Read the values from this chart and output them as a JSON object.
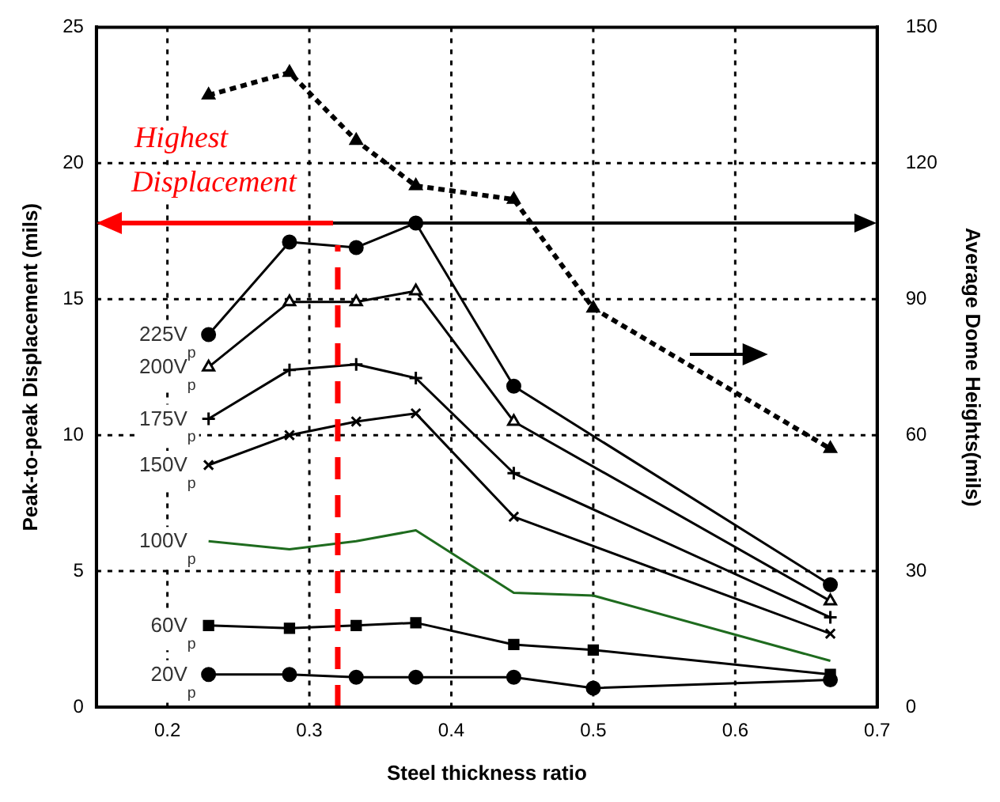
{
  "chart_data": {
    "type": "line",
    "xlabel": "Steel thickness ratio",
    "ylabel": "Peak-to-peak Displacement (mils)",
    "y2label": "Average Dome Heights(mils)",
    "x": [
      0.229,
      0.286,
      0.333,
      0.375,
      0.444,
      0.5,
      0.667
    ],
    "xlim": [
      0.15,
      0.7
    ],
    "xticks": [
      {
        "value": 0.15,
        "label": null
      },
      0.2,
      0.3,
      0.4,
      0.5,
      0.6,
      0.7
    ],
    "ylim": [
      0,
      25
    ],
    "yticks": [
      0,
      5,
      10,
      15,
      20,
      25
    ],
    "y2lim": [
      0,
      150
    ],
    "y2ticks": [
      0,
      30,
      60,
      90,
      120,
      150
    ],
    "grid": true,
    "legend": false,
    "series": [
      {
        "name": "225V$_{p}$",
        "color": "#000000",
        "marker": "circle",
        "values": [
          13.7,
          17.1,
          16.9,
          17.8,
          11.8,
          null,
          4.5
        ]
      },
      {
        "name": "200V$_{p}$",
        "color": "#000000",
        "marker": "triangle",
        "values": [
          12.5,
          14.9,
          14.9,
          15.3,
          10.5,
          null,
          3.9
        ]
      },
      {
        "name": "175V$_{p}$",
        "color": "#000000",
        "marker": "plus",
        "values": [
          10.6,
          12.4,
          12.6,
          12.1,
          8.6,
          null,
          3.3
        ]
      },
      {
        "name": "150V$_{p}$",
        "color": "#000000",
        "marker": "cross",
        "values": [
          8.9,
          10.0,
          10.5,
          10.8,
          7.0,
          null,
          2.7
        ]
      },
      {
        "name": "100V$_{p}$",
        "color": "#1e6b1e",
        "marker": "none",
        "values": [
          6.1,
          5.8,
          6.1,
          6.5,
          4.2,
          4.1,
          1.7
        ]
      },
      {
        "name": "60V$_{p}$",
        "color": "#000000",
        "marker": "square",
        "values": [
          3.0,
          2.9,
          3.0,
          3.1,
          2.3,
          2.1,
          1.2
        ]
      },
      {
        "name": "20V$_{p}$",
        "color": "#000000",
        "marker": "circle",
        "values": [
          1.2,
          1.2,
          1.1,
          1.1,
          1.1,
          0.7,
          1.0
        ]
      },
      {
        "color": "#000000",
        "marker": "triangle",
        "line_style": "dashed",
        "axis": "y2",
        "values": [
          135,
          140,
          125,
          115,
          112,
          88,
          57
        ]
      }
    ],
    "ref_lines": [
      {
        "axis": "y",
        "value": 17.8,
        "color": "#000000"
      },
      {
        "axis": "x",
        "value": 0.32,
        "color": "#ff0000",
        "line_style": "dashed",
        "label": "Highest Displacement"
      }
    ]
  }
}
